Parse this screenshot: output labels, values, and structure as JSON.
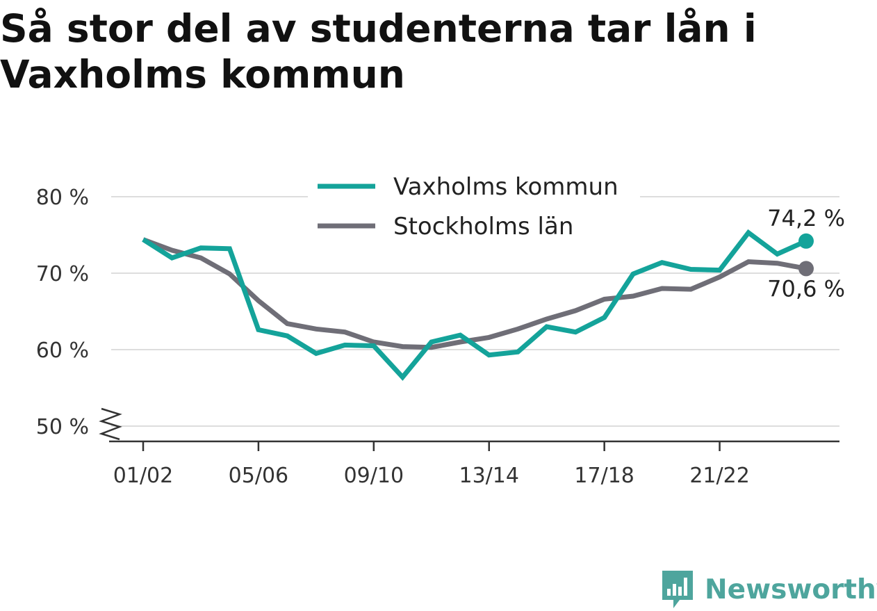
{
  "title": "Så stor del av studenterna tar lån i Vaxholms kommun",
  "colors": {
    "vaxholm": "#14a39a",
    "stockholm": "#6f6e77",
    "grid": "#dddddd",
    "axis": "#333333",
    "logo": "#4ea59d"
  },
  "logo": {
    "text": "Newsworthy",
    "icon": "newsworthy-logo-icon"
  },
  "chart_data": {
    "type": "line",
    "title": "Så stor del av studenterna tar lån i Vaxholms kommun",
    "xlabel": "",
    "ylabel": "",
    "x": [
      "01/02",
      "02/03",
      "03/04",
      "04/05",
      "05/06",
      "06/07",
      "07/08",
      "08/09",
      "09/10",
      "10/11",
      "11/12",
      "12/13",
      "13/14",
      "14/15",
      "15/16",
      "16/17",
      "17/18",
      "18/19",
      "19/20",
      "20/21",
      "21/22",
      "22/23",
      "23/24",
      "24/25"
    ],
    "x_tick_labels": [
      "01/02",
      "05/06",
      "09/10",
      "13/14",
      "17/18",
      "21/22"
    ],
    "ylim": [
      50,
      80
    ],
    "y_ticks": [
      50,
      60,
      70,
      80
    ],
    "y_tick_labels": [
      "50 %",
      "60 %",
      "70 %",
      "80 %"
    ],
    "y_axis_break": true,
    "grid": true,
    "legend_position": "top-center",
    "series": [
      {
        "name": "Vaxholms kommun",
        "values": [
          74.4,
          72.0,
          73.3,
          73.2,
          62.6,
          61.8,
          59.5,
          60.6,
          60.5,
          56.4,
          61.0,
          61.9,
          59.3,
          59.7,
          63.0,
          62.3,
          64.2,
          69.9,
          71.4,
          70.5,
          70.4,
          75.3,
          72.5,
          74.2
        ],
        "end_label": "74,2 %"
      },
      {
        "name": "Stockholms län",
        "values": [
          74.4,
          73.0,
          72.0,
          69.9,
          66.4,
          63.4,
          62.7,
          62.3,
          61.0,
          60.4,
          60.3,
          61.0,
          61.6,
          62.7,
          64.0,
          65.1,
          66.6,
          67.0,
          68.0,
          67.9,
          69.5,
          71.5,
          71.3,
          70.6
        ],
        "end_label": "70,6 %"
      }
    ]
  }
}
